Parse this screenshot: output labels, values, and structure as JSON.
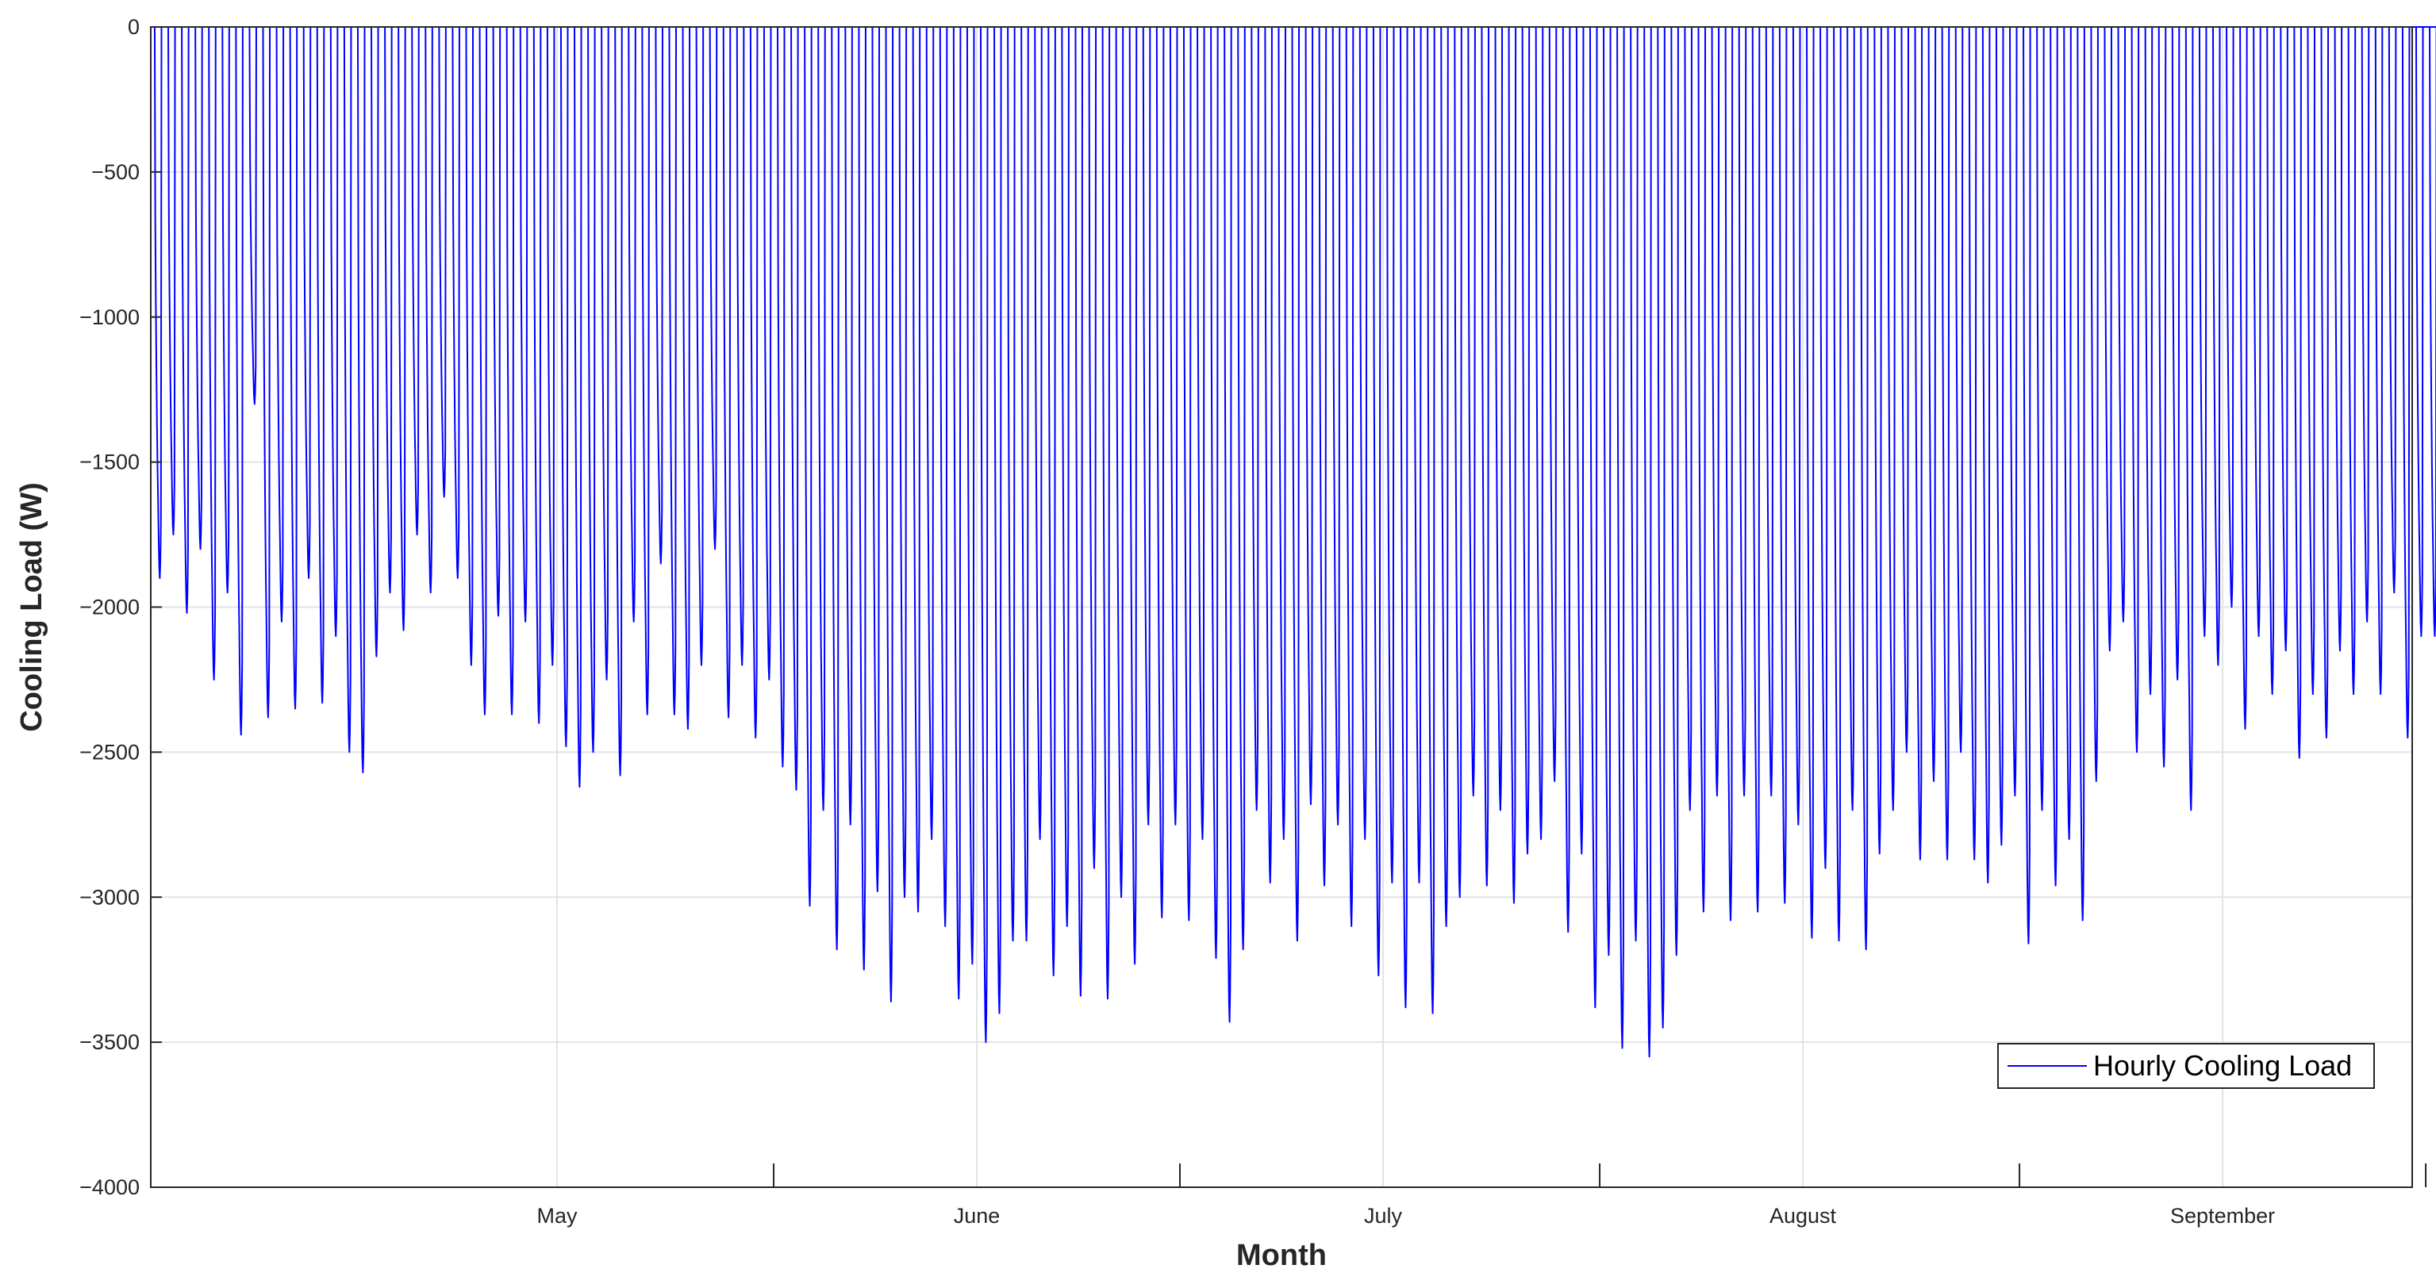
{
  "chart_data": {
    "type": "line",
    "xlabel": "Month",
    "ylabel": "Cooling Load (W)",
    "ylim": [
      -4000,
      0
    ],
    "yticks": [
      0,
      -500,
      -1000,
      -1500,
      -2000,
      -2500,
      -3000,
      -3500,
      -4000
    ],
    "ytick_labels": [
      "0",
      "−500",
      "−1000",
      "−1500",
      "−2000",
      "−2500",
      "−3000",
      "−3500",
      "−4000"
    ],
    "xlim": [
      "2023-04-16",
      "2023-09-30"
    ],
    "month_labels": [
      "May",
      "June",
      "July",
      "August",
      "September"
    ],
    "grid": true,
    "legend": {
      "location": "bottom-right"
    },
    "series": [
      {
        "name": "Hourly Cooling Load",
        "color": "#0000ff",
        "hourly_resolution": "1 hour; zero outside occupied hours",
        "daily_peak_values_from_2023-04-16": [
          -1900,
          -1750,
          -2020,
          -1800,
          -2250,
          -1950,
          -2440,
          -1300,
          -2380,
          -2050,
          -2350,
          -1900,
          -2330,
          -2100,
          -2500,
          -2570,
          -2170,
          -1950,
          -2080,
          -1750,
          -1950,
          -1620,
          -1900,
          -2200,
          -2370,
          -2030,
          -2370,
          -2050,
          -2400,
          -2200,
          -2480,
          -2620,
          -2500,
          -2250,
          -2580,
          -2050,
          -2370,
          -1850,
          -2370,
          -2420,
          -2200,
          -1800,
          -2380,
          -2200,
          -2450,
          -2250,
          -2550,
          -2630,
          -3030,
          -2700,
          -3180,
          -2750,
          -3250,
          -2980,
          -3360,
          -3000,
          -3050,
          -2800,
          -3100,
          -3350,
          -3230,
          -3500,
          -3400,
          -3150,
          -3150,
          -2800,
          -3270,
          -3100,
          -3340,
          -2900,
          -3350,
          -3000,
          -3230,
          -2750,
          -3070,
          -2750,
          -3080,
          -2800,
          -3210,
          -3430,
          -3180,
          -2700,
          -2950,
          -2800,
          -3150,
          -2680,
          -2960,
          -2750,
          -3100,
          -2800,
          -3270,
          -2950,
          -3380,
          -2950,
          -3400,
          -3100,
          -3000,
          -2650,
          -2960,
          -2700,
          -3020,
          -2850,
          -2800,
          -2600,
          -3120,
          -2850,
          -3380,
          -3200,
          -3520,
          -3150,
          -3550,
          -3450,
          -3200,
          -2700,
          -3050,
          -2650,
          -3080,
          -2650,
          -3050,
          -2650,
          -3020,
          -2750,
          -3140,
          -2900,
          -3150,
          -2700,
          -3180,
          -2850,
          -2700,
          -2500,
          -2870,
          -2600,
          -2870,
          -2500,
          -2870,
          -2950,
          -2820,
          -2650,
          -3160,
          -2700,
          -2960,
          -2800,
          -3080,
          -2600,
          -2150,
          -2050,
          -2500,
          -2300,
          -2550,
          -2250,
          -2700,
          -2100,
          -2200,
          -2000,
          -2420,
          -2100,
          -2300,
          -2150,
          -2520,
          -2300,
          -2450,
          -2150,
          -2300,
          -2050,
          -2300,
          -1950,
          -2450,
          -2100,
          -2100,
          -1900,
          -2400,
          -2200,
          -2350,
          -2050
        ]
      }
    ]
  }
}
